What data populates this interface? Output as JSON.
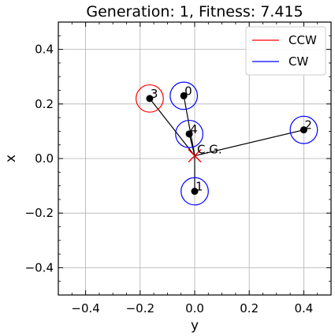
{
  "chart_data": {
    "type": "scatter",
    "title": "Generation: 1, Fitness: 7.415",
    "xlabel": "y",
    "ylabel": "x",
    "xlim": [
      -0.5,
      0.5
    ],
    "ylim": [
      -0.5,
      0.5
    ],
    "xticks": [
      -0.4,
      -0.2,
      0.0,
      0.2,
      0.4
    ],
    "yticks": [
      -0.4,
      -0.2,
      0.0,
      0.2,
      0.4
    ],
    "xtick_labels": [
      "−0.4",
      "−0.2",
      "0.0",
      "0.2",
      "0.4"
    ],
    "ytick_labels": [
      "−0.4",
      "−0.2",
      "0.0",
      "0.2",
      "0.4"
    ],
    "grid": true,
    "legend_position": "top-right",
    "legend": [
      {
        "label": "CCW",
        "color": "#ff0000"
      },
      {
        "label": "CW",
        "color": "#0000ff"
      }
    ],
    "center_of_gravity": {
      "x": 0.0,
      "y": 0.01,
      "label": "C.G.",
      "color": "#ff0000"
    },
    "rotors": [
      {
        "label": "0",
        "x": -0.04,
        "y": 0.23,
        "radius": 0.05,
        "direction": "CW",
        "color": "#0000ff"
      },
      {
        "label": "1",
        "x": 0.0,
        "y": -0.12,
        "radius": 0.05,
        "direction": "CW",
        "color": "#0000ff"
      },
      {
        "label": "2",
        "x": 0.4,
        "y": 0.105,
        "radius": 0.05,
        "direction": "CW",
        "color": "#0000ff"
      },
      {
        "label": "3",
        "x": -0.165,
        "y": 0.22,
        "radius": 0.05,
        "direction": "CCW",
        "color": "#ff0000"
      },
      {
        "label": "4",
        "x": -0.02,
        "y": 0.09,
        "radius": 0.05,
        "direction": "CW",
        "color": "#0000ff"
      }
    ]
  }
}
